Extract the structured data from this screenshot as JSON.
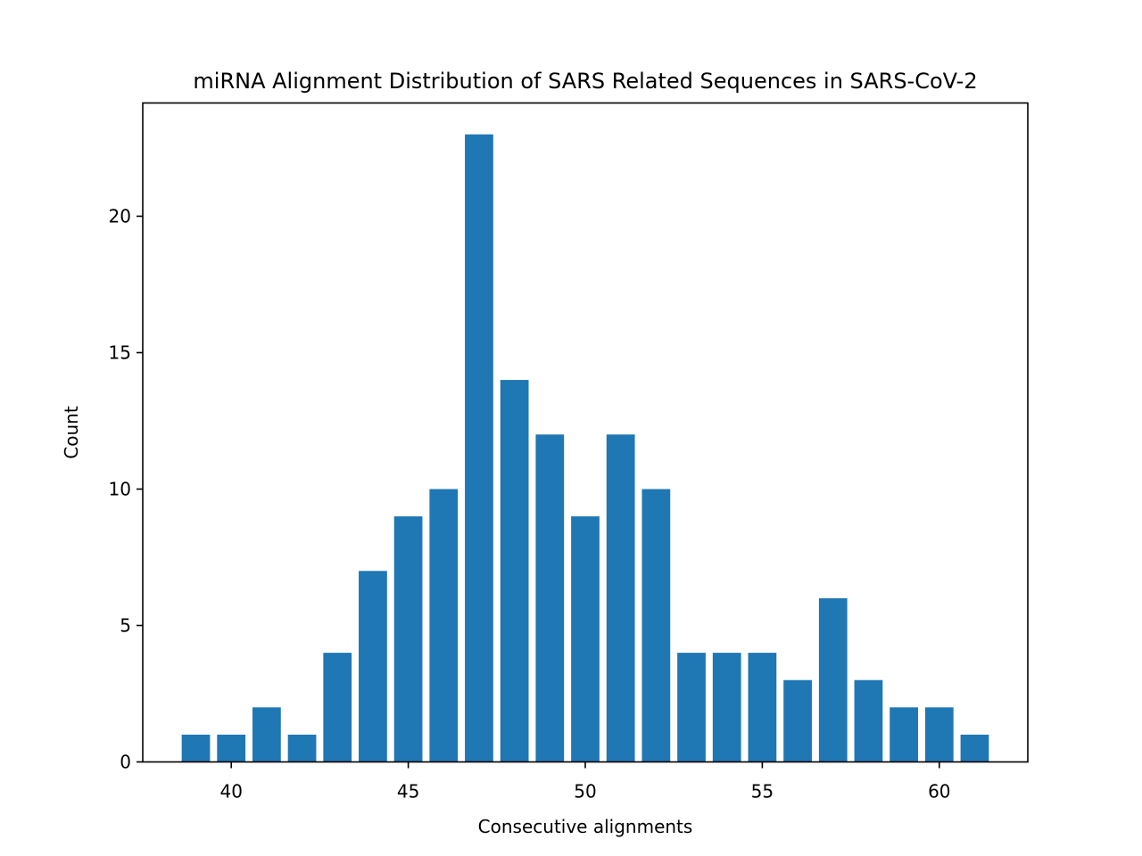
{
  "chart_data": {
    "type": "bar",
    "title": "miRNA Alignment Distribution of SARS Related Sequences in SARS-CoV-2",
    "xlabel": "Consecutive alignments",
    "ylabel": "Count",
    "x": [
      39,
      40,
      41,
      42,
      43,
      44,
      45,
      46,
      47,
      48,
      49,
      50,
      51,
      52,
      53,
      54,
      55,
      56,
      57,
      58,
      59,
      60,
      61
    ],
    "values": [
      1,
      1,
      2,
      1,
      4,
      7,
      9,
      10,
      23,
      14,
      12,
      9,
      12,
      10,
      4,
      4,
      4,
      3,
      6,
      3,
      2,
      2,
      1
    ],
    "xlim": [
      37.5,
      62.5
    ],
    "ylim": [
      0,
      24.15
    ],
    "xticks": [
      40,
      45,
      50,
      55,
      60
    ],
    "yticks": [
      0,
      5,
      10,
      15,
      20
    ],
    "grid": false,
    "bar_color": "#1f77b4"
  }
}
